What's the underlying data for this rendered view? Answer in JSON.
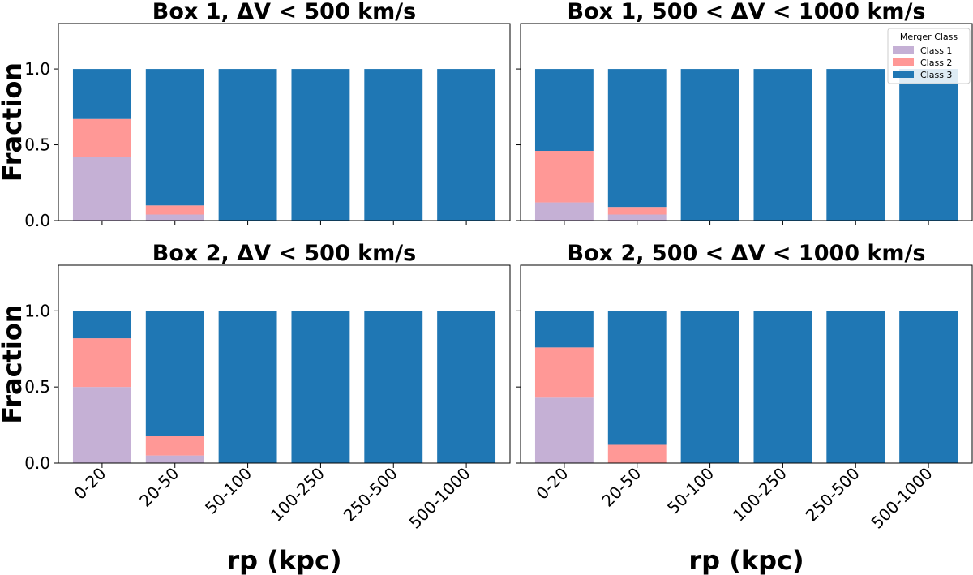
{
  "colors": {
    "class1": "#c5b0d5",
    "class2": "#ff9896",
    "class3": "#1f77b4"
  },
  "y_axis_label": "Fraction",
  "x_axis_label": "rp (kpc)",
  "y_tick_labels": [
    "0.0",
    "0.5",
    "1.0"
  ],
  "legend": {
    "title": "Merger Class",
    "entries": [
      "Class 1",
      "Class 2",
      "Class 3"
    ]
  },
  "chart_data": [
    {
      "type": "bar",
      "stacked": true,
      "title": "Box 1, ΔV < 500 km/s",
      "categories": [
        "0-20",
        "20-50",
        "50-100",
        "100-250",
        "250-500",
        "500-1000"
      ],
      "series": [
        {
          "name": "Class 1",
          "values": [
            0.42,
            0.04,
            0,
            0,
            0,
            0
          ]
        },
        {
          "name": "Class 2",
          "values": [
            0.25,
            0.06,
            0,
            0,
            0,
            0
          ]
        },
        {
          "name": "Class 3",
          "values": [
            0.33,
            0.9,
            1,
            1,
            1,
            1
          ]
        }
      ],
      "xlabel": "",
      "ylabel": "Fraction",
      "ylim": [
        0,
        1.3
      ],
      "legend": false
    },
    {
      "type": "bar",
      "stacked": true,
      "title": "Box 1, 500 < ΔV < 1000 km/s",
      "categories": [
        "0-20",
        "20-50",
        "50-100",
        "100-250",
        "250-500",
        "500-1000"
      ],
      "series": [
        {
          "name": "Class 1",
          "values": [
            0.12,
            0.04,
            0,
            0,
            0,
            0
          ]
        },
        {
          "name": "Class 2",
          "values": [
            0.34,
            0.05,
            0,
            0,
            0,
            0
          ]
        },
        {
          "name": "Class 3",
          "values": [
            0.54,
            0.91,
            1,
            1,
            1,
            1
          ]
        }
      ],
      "xlabel": "",
      "ylabel": "",
      "ylim": [
        0,
        1.3
      ],
      "legend": true,
      "legend_position": "top-right"
    },
    {
      "type": "bar",
      "stacked": true,
      "title": "Box 2, ΔV < 500 km/s",
      "categories": [
        "0-20",
        "20-50",
        "50-100",
        "100-250",
        "250-500",
        "500-1000"
      ],
      "series": [
        {
          "name": "Class 1",
          "values": [
            0.5,
            0.05,
            0,
            0,
            0,
            0
          ]
        },
        {
          "name": "Class 2",
          "values": [
            0.32,
            0.13,
            0,
            0,
            0,
            0
          ]
        },
        {
          "name": "Class 3",
          "values": [
            0.18,
            0.82,
            1,
            1,
            1,
            1
          ]
        }
      ],
      "xlabel": "rp (kpc)",
      "ylabel": "Fraction",
      "ylim": [
        0,
        1.3
      ],
      "legend": false
    },
    {
      "type": "bar",
      "stacked": true,
      "title": "Box 2, 500 < ΔV < 1000 km/s",
      "categories": [
        "0-20",
        "20-50",
        "50-100",
        "100-250",
        "250-500",
        "500-1000"
      ],
      "series": [
        {
          "name": "Class 1",
          "values": [
            0.43,
            0.0,
            0,
            0,
            0,
            0
          ]
        },
        {
          "name": "Class 2",
          "values": [
            0.33,
            0.12,
            0,
            0,
            0,
            0
          ]
        },
        {
          "name": "Class 3",
          "values": [
            0.24,
            0.88,
            1,
            1,
            1,
            1
          ]
        }
      ],
      "xlabel": "rp (kpc)",
      "ylabel": "",
      "ylim": [
        0,
        1.3
      ],
      "legend": false
    }
  ]
}
